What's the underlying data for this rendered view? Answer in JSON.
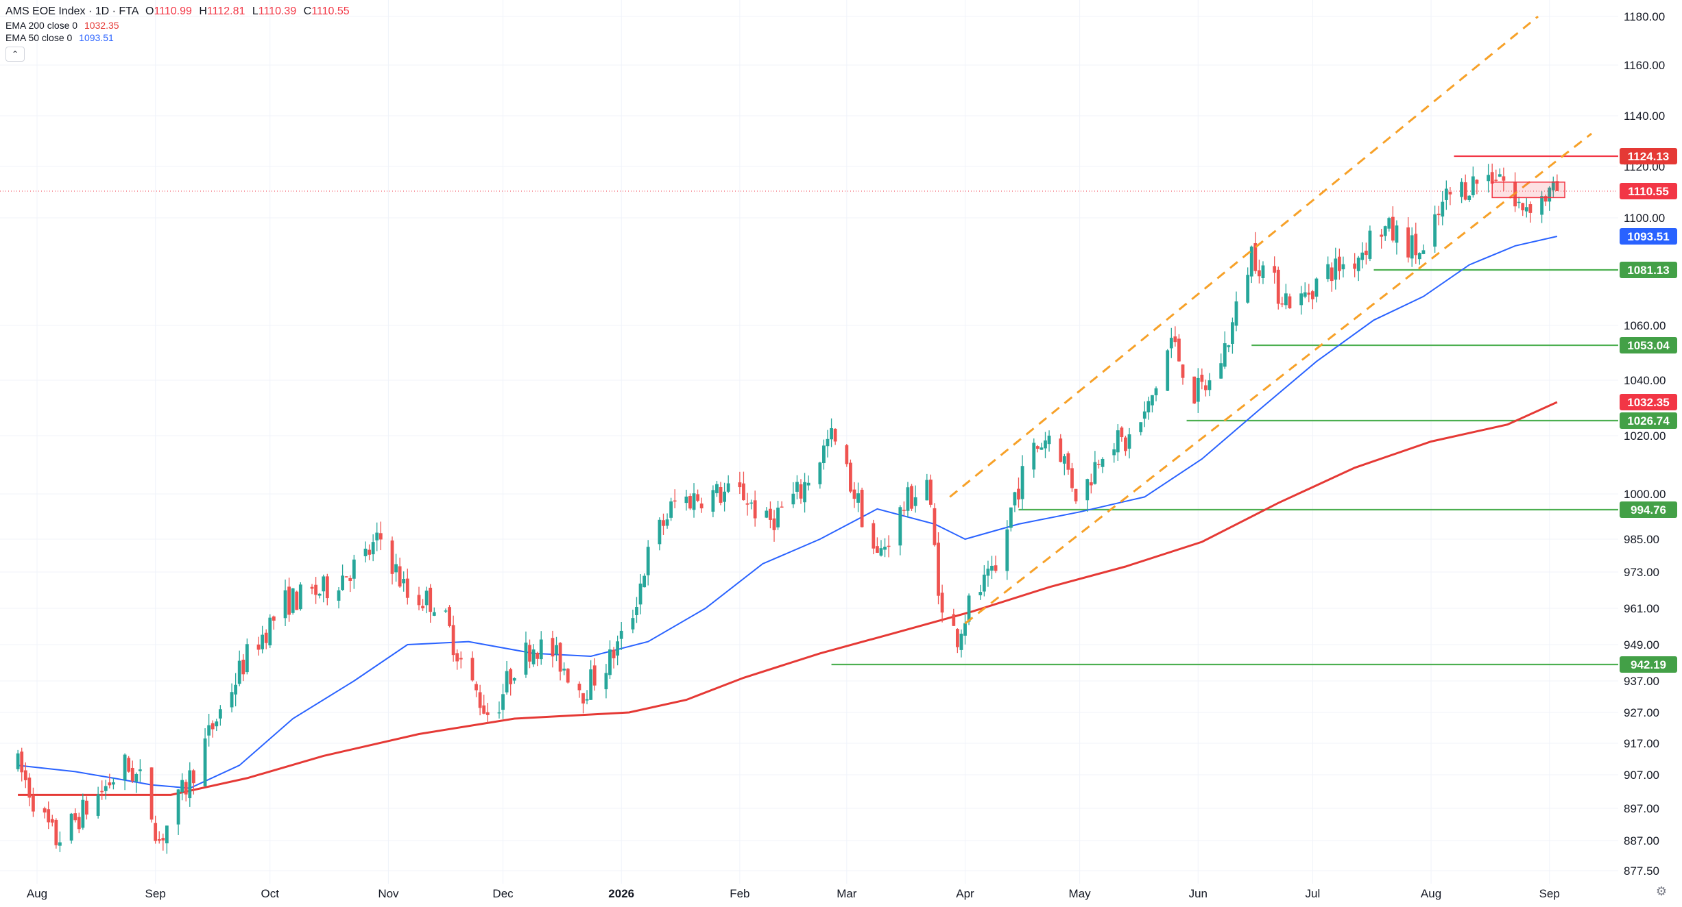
{
  "title": {
    "name": "AMS EOE Index · 1D · FTA",
    "ohlc": [
      {
        "k": "O",
        "v": "1110.99"
      },
      {
        "k": "H",
        "v": "1112.81"
      },
      {
        "k": "L",
        "v": "1110.39"
      },
      {
        "k": "C",
        "v": "1110.55"
      }
    ]
  },
  "indicators": [
    {
      "label": "EMA 200 close 0",
      "value": "1032.35",
      "color": "#e53935"
    },
    {
      "label": "EMA 50 close 0",
      "value": "1093.51",
      "color": "#2962ff"
    }
  ],
  "collapse_icon": "chevron-up-icon",
  "settings_icon": "gear-icon",
  "chart_data": {
    "type": "candlestick",
    "price_axis_ticks": [
      {
        "v": 1180,
        "t": "1180.00"
      },
      {
        "v": 1160,
        "t": "1160.00"
      },
      {
        "v": 1140,
        "t": "1140.00"
      },
      {
        "v": 1120,
        "t": "1120.00"
      },
      {
        "v": 1100,
        "t": "1100.00"
      },
      {
        "v": 1060,
        "t": "1060.00"
      },
      {
        "v": 1040,
        "t": "1040.00"
      },
      {
        "v": 1020,
        "t": "1020.00"
      },
      {
        "v": 1000,
        "t": "1000.00"
      },
      {
        "v": 985,
        "t": "985.00"
      },
      {
        "v": 973,
        "t": "973.00"
      },
      {
        "v": 961,
        "t": "961.00"
      },
      {
        "v": 949,
        "t": "949.00"
      },
      {
        "v": 937,
        "t": "937.00"
      },
      {
        "v": 927,
        "t": "927.00"
      },
      {
        "v": 917,
        "t": "917.00"
      },
      {
        "v": 907,
        "t": "907.00"
      },
      {
        "v": 897,
        "t": "897.00"
      },
      {
        "v": 887,
        "t": "887.00"
      },
      {
        "v": 877.5,
        "t": "877.50"
      }
    ],
    "time_axis": [
      {
        "t": "Aug",
        "d": 5,
        "bold": false
      },
      {
        "t": "Sep",
        "d": 36,
        "bold": false
      },
      {
        "t": "Oct",
        "d": 66,
        "bold": false
      },
      {
        "t": "Nov",
        "d": 97,
        "bold": false
      },
      {
        "t": "Dec",
        "d": 127,
        "bold": false
      },
      {
        "t": "2026",
        "d": 158,
        "bold": true
      },
      {
        "t": "Feb",
        "d": 189,
        "bold": false
      },
      {
        "t": "Mar",
        "d": 217,
        "bold": false
      },
      {
        "t": "Apr",
        "d": 248,
        "bold": false
      },
      {
        "t": "May",
        "d": 278,
        "bold": false
      },
      {
        "t": "Jun",
        "d": 309,
        "bold": false
      },
      {
        "t": "Jul",
        "d": 339,
        "bold": false
      },
      {
        "t": "Aug",
        "d": 370,
        "bold": false
      },
      {
        "t": "Sep",
        "d": 401,
        "bold": false
      }
    ],
    "price_path": [
      {
        "d": 0,
        "p": 910
      },
      {
        "d": 6,
        "p": 895
      },
      {
        "d": 10,
        "p": 887
      },
      {
        "d": 18,
        "p": 897
      },
      {
        "d": 28,
        "p": 910
      },
      {
        "d": 33,
        "p": 904
      },
      {
        "d": 37,
        "p": 887
      },
      {
        "d": 45,
        "p": 906
      },
      {
        "d": 52,
        "p": 925
      },
      {
        "d": 60,
        "p": 945
      },
      {
        "d": 70,
        "p": 963
      },
      {
        "d": 80,
        "p": 967
      },
      {
        "d": 90,
        "p": 977
      },
      {
        "d": 95,
        "p": 985
      },
      {
        "d": 102,
        "p": 965
      },
      {
        "d": 110,
        "p": 963
      },
      {
        "d": 118,
        "p": 937
      },
      {
        "d": 124,
        "p": 925
      },
      {
        "d": 130,
        "p": 942
      },
      {
        "d": 135,
        "p": 949
      },
      {
        "d": 140,
        "p": 946
      },
      {
        "d": 148,
        "p": 934
      },
      {
        "d": 155,
        "p": 944
      },
      {
        "d": 160,
        "p": 955
      },
      {
        "d": 166,
        "p": 984
      },
      {
        "d": 172,
        "p": 997
      },
      {
        "d": 180,
        "p": 1000
      },
      {
        "d": 190,
        "p": 1000
      },
      {
        "d": 196,
        "p": 990
      },
      {
        "d": 205,
        "p": 1001
      },
      {
        "d": 213,
        "p": 1020
      },
      {
        "d": 220,
        "p": 997
      },
      {
        "d": 225,
        "p": 978
      },
      {
        "d": 232,
        "p": 996
      },
      {
        "d": 238,
        "p": 1005
      },
      {
        "d": 242,
        "p": 958
      },
      {
        "d": 246,
        "p": 952
      },
      {
        "d": 250,
        "p": 965
      },
      {
        "d": 256,
        "p": 972
      },
      {
        "d": 261,
        "p": 1000
      },
      {
        "d": 266,
        "p": 1015
      },
      {
        "d": 271,
        "p": 1022
      },
      {
        "d": 278,
        "p": 997
      },
      {
        "d": 285,
        "p": 1020
      },
      {
        "d": 290,
        "p": 1017
      },
      {
        "d": 296,
        "p": 1030
      },
      {
        "d": 302,
        "p": 1055
      },
      {
        "d": 308,
        "p": 1035
      },
      {
        "d": 313,
        "p": 1040
      },
      {
        "d": 318,
        "p": 1060
      },
      {
        "d": 323,
        "p": 1088
      },
      {
        "d": 330,
        "p": 1073
      },
      {
        "d": 335,
        "p": 1068
      },
      {
        "d": 342,
        "p": 1080
      },
      {
        "d": 350,
        "p": 1085
      },
      {
        "d": 356,
        "p": 1097
      },
      {
        "d": 362,
        "p": 1093
      },
      {
        "d": 368,
        "p": 1086
      },
      {
        "d": 374,
        "p": 1108
      },
      {
        "d": 381,
        "p": 1114
      },
      {
        "d": 388,
        "p": 1118
      },
      {
        "d": 392,
        "p": 1104
      },
      {
        "d": 398,
        "p": 1107
      },
      {
        "d": 403,
        "p": 1110.55
      }
    ],
    "ema200_path": [
      {
        "d": 0,
        "p": 901
      },
      {
        "d": 40,
        "p": 901
      },
      {
        "d": 60,
        "p": 906
      },
      {
        "d": 80,
        "p": 913
      },
      {
        "d": 105,
        "p": 920
      },
      {
        "d": 130,
        "p": 925
      },
      {
        "d": 160,
        "p": 927
      },
      {
        "d": 175,
        "p": 931
      },
      {
        "d": 190,
        "p": 938
      },
      {
        "d": 210,
        "p": 946
      },
      {
        "d": 230,
        "p": 953
      },
      {
        "d": 250,
        "p": 960
      },
      {
        "d": 270,
        "p": 968
      },
      {
        "d": 290,
        "p": 975
      },
      {
        "d": 310,
        "p": 984
      },
      {
        "d": 330,
        "p": 997
      },
      {
        "d": 350,
        "p": 1009
      },
      {
        "d": 370,
        "p": 1018
      },
      {
        "d": 390,
        "p": 1025
      },
      {
        "d": 403,
        "p": 1032.35
      }
    ],
    "ema50_path": [
      {
        "d": 0,
        "p": 910
      },
      {
        "d": 15,
        "p": 908
      },
      {
        "d": 25,
        "p": 906
      },
      {
        "d": 35,
        "p": 904
      },
      {
        "d": 45,
        "p": 903
      },
      {
        "d": 58,
        "p": 910
      },
      {
        "d": 72,
        "p": 925
      },
      {
        "d": 88,
        "p": 937
      },
      {
        "d": 102,
        "p": 949
      },
      {
        "d": 118,
        "p": 950
      },
      {
        "d": 135,
        "p": 946
      },
      {
        "d": 150,
        "p": 945
      },
      {
        "d": 165,
        "p": 950
      },
      {
        "d": 180,
        "p": 961
      },
      {
        "d": 195,
        "p": 976
      },
      {
        "d": 210,
        "p": 985
      },
      {
        "d": 225,
        "p": 995
      },
      {
        "d": 240,
        "p": 990
      },
      {
        "d": 248,
        "p": 985
      },
      {
        "d": 262,
        "p": 990
      },
      {
        "d": 278,
        "p": 994
      },
      {
        "d": 295,
        "p": 999
      },
      {
        "d": 310,
        "p": 1012
      },
      {
        "d": 325,
        "p": 1030
      },
      {
        "d": 340,
        "p": 1047
      },
      {
        "d": 355,
        "p": 1062
      },
      {
        "d": 368,
        "p": 1071
      },
      {
        "d": 380,
        "p": 1083
      },
      {
        "d": 392,
        "p": 1090
      },
      {
        "d": 403,
        "p": 1093.51
      }
    ],
    "horizontal_levels": [
      {
        "price": 1081.13,
        "label": "1081.13",
        "start_d": 355,
        "color": "#4caf50"
      },
      {
        "price": 1053.04,
        "label": "1053.04",
        "start_d": 323,
        "color": "#4caf50"
      },
      {
        "price": 1026.74,
        "label": "1026.74",
        "start_d": 306,
        "color": "#4caf50"
      },
      {
        "price": 994.76,
        "label": "994.76",
        "start_d": 262,
        "color": "#4caf50"
      },
      {
        "price": 942.19,
        "label": "942.19",
        "start_d": 213,
        "color": "#4caf50"
      },
      {
        "price": 1124.13,
        "label": "1124.13",
        "start_d": 376,
        "color": "#f23645"
      }
    ],
    "price_badges": [
      {
        "label": "1110.55",
        "price": 1110.55,
        "color": "#f23645"
      },
      {
        "label": "1093.51",
        "price": 1093.51,
        "color": "#2962ff"
      },
      {
        "label": "1032.35",
        "price": 1032.35,
        "color": "#f23645"
      }
    ],
    "last_price": 1110.55,
    "channel_lines": [
      {
        "d1": 244,
        "p1": 999,
        "d2": 398,
        "p2": 1180
      },
      {
        "d1": 248,
        "p1": 956,
        "d2": 412,
        "p2": 1133
      }
    ],
    "resistance_box": {
      "d1": 386,
      "d2": 405,
      "p_top": 1114,
      "p_bottom": 1108
    },
    "colors": {
      "up": "#26a69a",
      "down": "#ef5350",
      "channel": "#f7a128",
      "grid": "#f0f3fa"
    }
  }
}
